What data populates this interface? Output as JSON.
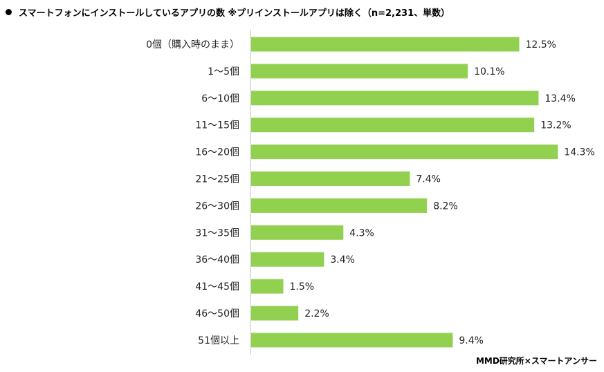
{
  "title": "スマートフォンにインストールしているアプリの数 ※プリインストールアプリは除く（n=2,231、単数）",
  "source": "MMD研究所×スマートアンサー",
  "bar_color": "#92d050",
  "chart_data": {
    "type": "bar",
    "orientation": "horizontal",
    "categories": [
      "0個（購入時のまま）",
      "1～5個",
      "6～10個",
      "11～15個",
      "16～20個",
      "21～25個",
      "26～30個",
      "31～35個",
      "36～40個",
      "41～45個",
      "46～50個",
      "51個以上"
    ],
    "values": [
      12.5,
      10.1,
      13.4,
      13.2,
      14.3,
      7.4,
      8.2,
      4.3,
      3.4,
      1.5,
      2.2,
      9.4
    ],
    "value_labels": [
      "12.5%",
      "10.1%",
      "13.4%",
      "13.2%",
      "14.3%",
      "7.4%",
      "8.2%",
      "4.3%",
      "3.4%",
      "1.5%",
      "2.2%",
      "9.4%"
    ],
    "unit": "%",
    "xlim": [
      0,
      15
    ],
    "grid": false,
    "legend": "none"
  }
}
